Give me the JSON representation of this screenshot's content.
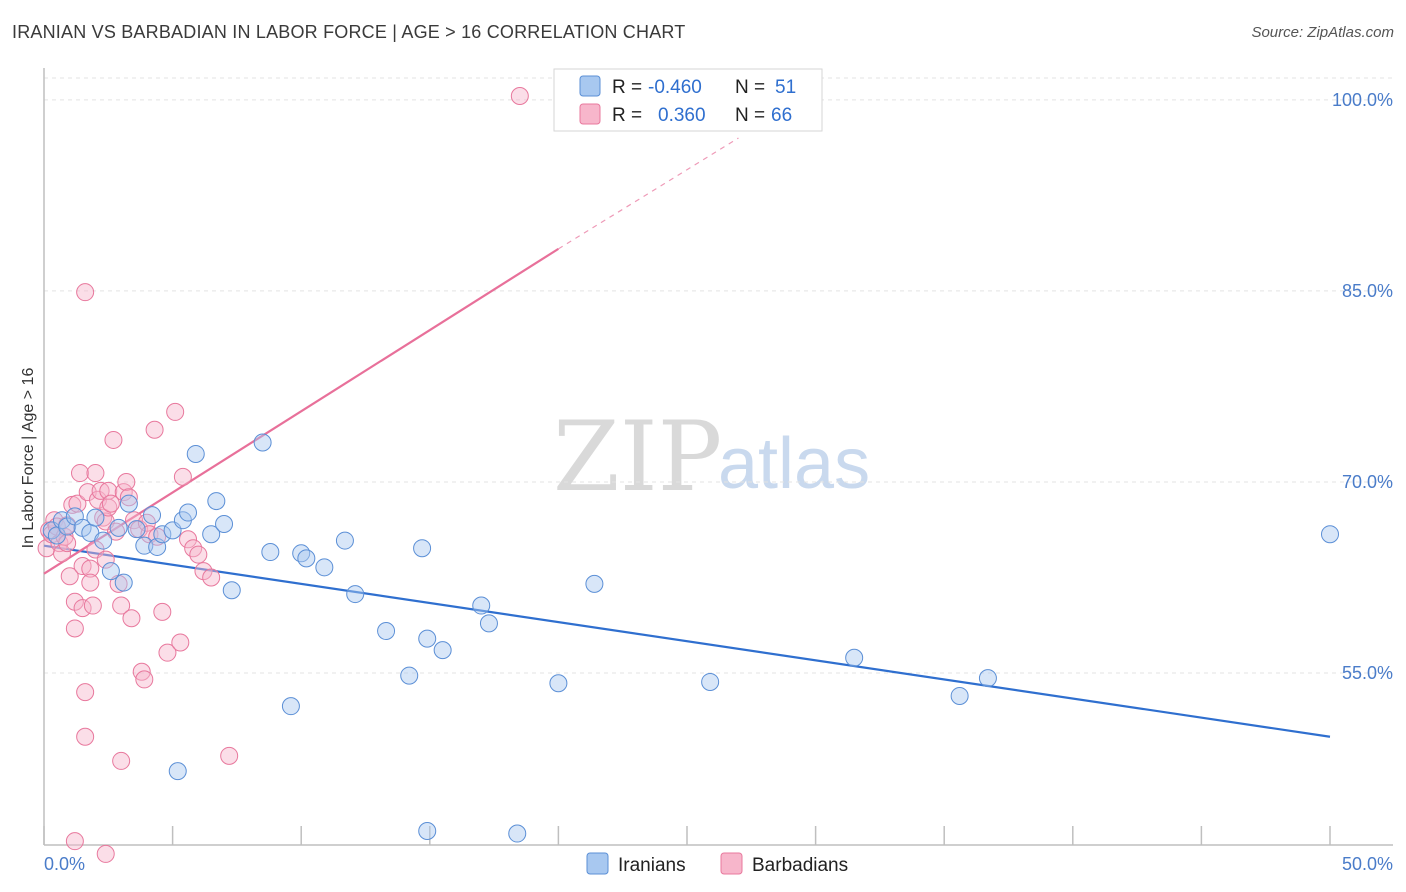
{
  "header": {
    "title": "IRANIAN VS BARBADIAN IN LABOR FORCE | AGE > 16 CORRELATION CHART",
    "source": "Source: ZipAtlas.com"
  },
  "watermark": {
    "zip": "ZIP",
    "atlas": "atlas"
  },
  "legend": {
    "iranians": {
      "r_label": "R =",
      "r_value": "-0.460",
      "n_label": "N =",
      "n_value": "51"
    },
    "barbadians": {
      "r_label": "R =",
      "r_value": "0.360",
      "n_label": "N =",
      "n_value": "66"
    }
  },
  "colors": {
    "iranians_fill": "#a8c8f0",
    "iranians_stroke": "#5b8fd6",
    "iranians_line": "#2f6fcf",
    "barbadians_fill": "#f7b6cb",
    "barbadians_stroke": "#e8789d",
    "barbadians_line": "#e8709a",
    "grid": "#e3e3e3"
  },
  "chart_data": {
    "type": "scatter",
    "title": "IRANIAN VS BARBADIAN IN LABOR FORCE | AGE > 16 CORRELATION CHART",
    "xlabel": "",
    "ylabel": "In Labor Force | Age > 16",
    "xlim": [
      0,
      50
    ],
    "ylim": [
      41.5,
      102.5
    ],
    "x_tick_labels": [
      "0.0%",
      "50.0%"
    ],
    "y_ticks": [
      55,
      70,
      85,
      100
    ],
    "y_tick_labels": [
      "55.0%",
      "70.0%",
      "85.0%",
      "100.0%"
    ],
    "legend_position": "top-center",
    "series": [
      {
        "name": "Iranians",
        "R": -0.46,
        "N": 51,
        "trend": {
          "x": [
            0,
            50
          ],
          "y": [
            65.0,
            50.0
          ]
        },
        "points": [
          [
            0.3,
            66.2
          ],
          [
            0.5,
            65.8
          ],
          [
            0.7,
            67.0
          ],
          [
            0.9,
            66.5
          ],
          [
            1.2,
            67.3
          ],
          [
            1.5,
            66.4
          ],
          [
            1.8,
            66.0
          ],
          [
            2.0,
            67.2
          ],
          [
            2.3,
            65.4
          ],
          [
            2.6,
            63.0
          ],
          [
            2.9,
            66.4
          ],
          [
            3.1,
            62.1
          ],
          [
            3.3,
            68.3
          ],
          [
            3.6,
            66.3
          ],
          [
            3.9,
            65.0
          ],
          [
            4.2,
            67.4
          ],
          [
            4.4,
            64.9
          ],
          [
            4.6,
            65.9
          ],
          [
            5.0,
            66.2
          ],
          [
            5.4,
            67.0
          ],
          [
            5.6,
            67.6
          ],
          [
            5.9,
            72.2
          ],
          [
            6.5,
            65.9
          ],
          [
            6.7,
            68.5
          ],
          [
            7.0,
            66.7
          ],
          [
            7.3,
            61.5
          ],
          [
            8.5,
            73.1
          ],
          [
            8.8,
            64.5
          ],
          [
            9.6,
            52.4
          ],
          [
            10.0,
            64.4
          ],
          [
            10.2,
            64.0
          ],
          [
            10.9,
            63.3
          ],
          [
            5.2,
            47.3
          ],
          [
            11.7,
            65.4
          ],
          [
            12.1,
            61.2
          ],
          [
            13.3,
            58.3
          ],
          [
            14.2,
            54.8
          ],
          [
            14.7,
            64.8
          ],
          [
            14.9,
            42.6
          ],
          [
            14.9,
            57.7
          ],
          [
            15.5,
            56.8
          ],
          [
            17.0,
            60.3
          ],
          [
            17.3,
            58.9
          ],
          [
            18.4,
            42.4
          ],
          [
            20.0,
            54.2
          ],
          [
            21.4,
            62.0
          ],
          [
            25.9,
            54.3
          ],
          [
            31.5,
            56.2
          ],
          [
            35.6,
            53.2
          ],
          [
            36.7,
            54.6
          ],
          [
            50.0,
            65.9
          ]
        ]
      },
      {
        "name": "Barbadians",
        "R": 0.36,
        "N": 66,
        "trend": {
          "x": [
            0,
            20
          ],
          "y": [
            62.8,
            88.3
          ]
        },
        "trend_dashed": {
          "x": [
            20,
            27
          ],
          "y": [
            88.3,
            97.0
          ]
        },
        "points": [
          [
            0.1,
            64.8
          ],
          [
            0.2,
            66.2
          ],
          [
            0.3,
            65.9
          ],
          [
            0.4,
            67.0
          ],
          [
            0.5,
            66.5
          ],
          [
            0.6,
            65.2
          ],
          [
            0.7,
            64.4
          ],
          [
            0.8,
            65.7
          ],
          [
            0.9,
            66.6
          ],
          [
            1.0,
            62.6
          ],
          [
            1.1,
            68.2
          ],
          [
            1.2,
            60.6
          ],
          [
            1.2,
            58.5
          ],
          [
            1.3,
            68.3
          ],
          [
            1.4,
            70.7
          ],
          [
            1.5,
            63.4
          ],
          [
            1.5,
            60.1
          ],
          [
            1.7,
            69.2
          ],
          [
            1.8,
            63.2
          ],
          [
            1.8,
            62.1
          ],
          [
            1.9,
            60.3
          ],
          [
            2.0,
            64.7
          ],
          [
            2.0,
            70.7
          ],
          [
            2.1,
            68.6
          ],
          [
            2.2,
            69.3
          ],
          [
            2.3,
            67.2
          ],
          [
            2.4,
            63.9
          ],
          [
            2.4,
            66.9
          ],
          [
            2.5,
            68.0
          ],
          [
            2.5,
            69.3
          ],
          [
            2.6,
            68.3
          ],
          [
            2.7,
            73.3
          ],
          [
            2.8,
            66.1
          ],
          [
            2.9,
            62.0
          ],
          [
            3.0,
            60.3
          ],
          [
            3.0,
            48.1
          ],
          [
            3.1,
            69.2
          ],
          [
            3.2,
            70.0
          ],
          [
            3.3,
            68.8
          ],
          [
            3.4,
            59.3
          ],
          [
            3.5,
            67.0
          ],
          [
            3.7,
            66.3
          ],
          [
            3.8,
            55.1
          ],
          [
            3.9,
            54.5
          ],
          [
            4.0,
            66.8
          ],
          [
            4.1,
            65.9
          ],
          [
            4.3,
            74.1
          ],
          [
            4.4,
            65.7
          ],
          [
            4.6,
            59.8
          ],
          [
            4.8,
            56.6
          ],
          [
            5.1,
            75.5
          ],
          [
            5.3,
            57.4
          ],
          [
            5.4,
            70.4
          ],
          [
            5.6,
            65.5
          ],
          [
            5.8,
            64.8
          ],
          [
            6.0,
            64.3
          ],
          [
            6.2,
            63.0
          ],
          [
            6.5,
            62.5
          ],
          [
            1.6,
            84.9
          ],
          [
            1.6,
            53.5
          ],
          [
            1.6,
            50.0
          ],
          [
            1.2,
            41.8
          ],
          [
            2.4,
            40.8
          ],
          [
            7.2,
            48.5
          ],
          [
            18.5,
            100.3
          ],
          [
            0.9,
            65.2
          ]
        ]
      }
    ]
  },
  "bottom_legend": {
    "iranians_label": "Iranians",
    "barbadians_label": "Barbadians"
  }
}
